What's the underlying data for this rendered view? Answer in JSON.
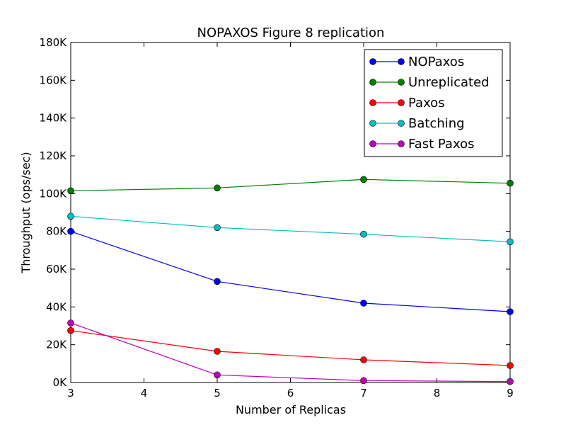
{
  "chart_data": {
    "type": "line",
    "title": "NOPAXOS Figure 8 replication",
    "xlabel": "Number of Replicas",
    "ylabel": "Throughput (ops/sec)",
    "xlim": [
      3,
      9
    ],
    "ylim": [
      0,
      180000
    ],
    "xticks": [
      3,
      4,
      5,
      6,
      7,
      8,
      9
    ],
    "xtick_labels": [
      "3",
      "4",
      "5",
      "6",
      "7",
      "8",
      "9"
    ],
    "yticks": [
      0,
      20000,
      40000,
      60000,
      80000,
      100000,
      120000,
      140000,
      160000,
      180000
    ],
    "ytick_labels": [
      "0K",
      "20K",
      "40K",
      "60K",
      "80K",
      "100K",
      "120K",
      "140K",
      "160K",
      "180K"
    ],
    "grid": false,
    "legend_position": "top-right",
    "x": [
      3,
      5,
      7,
      9
    ],
    "series": [
      {
        "name": "NOPaxos",
        "color": "#0000ff",
        "values": [
          80000,
          53500,
          42000,
          37500
        ]
      },
      {
        "name": "Unreplicated",
        "color": "#008000",
        "values": [
          101500,
          103000,
          107500,
          105500
        ]
      },
      {
        "name": "Paxos",
        "color": "#ff0000",
        "values": [
          27500,
          16500,
          12000,
          9000
        ]
      },
      {
        "name": "Batching",
        "color": "#00bfbf",
        "values": [
          88000,
          82000,
          78500,
          74500
        ]
      },
      {
        "name": "Fast Paxos",
        "color": "#bf00bf",
        "values": [
          31500,
          4000,
          1000,
          500
        ]
      }
    ]
  }
}
